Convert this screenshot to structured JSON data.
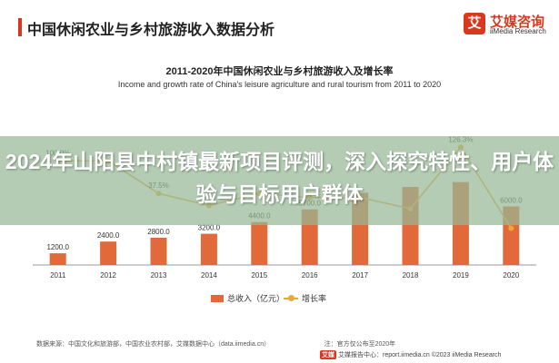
{
  "header": {
    "title": "中国休闲农业与乡村旅游收入数据分析",
    "logo_mark": "艾",
    "logo_cn": "艾媒咨询",
    "logo_en": "iiMedia Research"
  },
  "overlay": {
    "text": "2024年山阳县中村镇最新项目评测，深入探究特性、用户体验与目标用户群体"
  },
  "legend": {
    "bar_label": "总收入（亿元）",
    "line_label": "增长率"
  },
  "source": {
    "text": "数据来源：中国文化和旅游部，中国农业农村部，艾媒数据中心（data.iimedia.cn）　　　　　　　　　注：官方仅公布至2020年"
  },
  "footer": {
    "badge": "艾媒",
    "text": "艾媒报告中心：report.iimedia.cn ©2023 iiMedia Research"
  },
  "colors": {
    "bar": "#e2693a",
    "line": "#e9a83a",
    "accent": "#d9381e",
    "overlay": "#96b996"
  },
  "chart_data": {
    "type": "bar",
    "title": "2011-2020年中国休闲农业与乡村旅游收入及增长率",
    "subtitle": "Income and growth rate of China's leisure agriculture and rural tourism from 2011 to 2020",
    "categories": [
      "2011",
      "2012",
      "2013",
      "2014",
      "2015",
      "2016",
      "2017",
      "2018",
      "2019",
      "2020"
    ],
    "series": [
      {
        "name": "总收入（亿元）",
        "type": "bar",
        "values": [
          1200,
          2400,
          2800,
          3200,
          4400,
          5700,
          7400,
          8000,
          8500,
          6000
        ],
        "labels": [
          "1200.0",
          "2400.0",
          "2800.0",
          "3200.0",
          "4400.0",
          "5700.0",
          "",
          "",
          "",
          "6000.0"
        ]
      },
      {
        "name": "增长率",
        "type": "line",
        "values": [
          100.0,
          100.0,
          37.5,
          14.3,
          37.5,
          29.5,
          29.8,
          8.1,
          126.3,
          -29.4
        ],
        "labels": [
          "100.0%",
          "",
          "37.5%",
          "",
          "",
          "",
          "",
          "",
          "126.3%",
          ""
        ]
      }
    ],
    "xlabel": "",
    "ylabel": "",
    "ylim": [
      0,
      16000
    ],
    "y2lim": [
      -100,
      200
    ],
    "grid": false,
    "legend": "bottom"
  }
}
